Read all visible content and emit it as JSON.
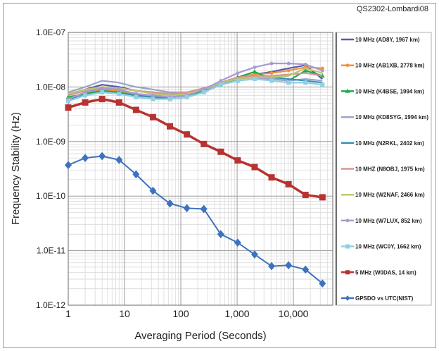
{
  "corner_label": "QS2302-Lombardi08",
  "chart_data": {
    "type": "line",
    "xscale": "log",
    "yscale": "log",
    "xlabel": "Averaging Period (Seconds)",
    "ylabel": "Frequency Stability (Hz)",
    "xlim": [
      1,
      50000
    ],
    "ylim": [
      1e-12,
      1e-07
    ],
    "x_ticks": [
      1,
      10,
      100,
      1000,
      10000
    ],
    "x_tick_labels": [
      "1",
      "10",
      "100",
      "1,000",
      "10,000"
    ],
    "y_ticks": [
      1e-07,
      1e-08,
      1e-09,
      1e-10,
      1e-11,
      1e-12
    ],
    "y_tick_labels": [
      "1.0E-07",
      "1.0E-08",
      "1.0E-09",
      "1.0E-10",
      "1.0E-11",
      "1.0E-12"
    ],
    "grid": true,
    "legend_position": "right",
    "x": [
      1,
      2,
      4,
      8,
      16,
      32,
      64,
      128,
      256,
      512,
      1024,
      2048,
      4096,
      8192,
      16384,
      32768
    ],
    "series": [
      {
        "name": "10 MHz (AD8Y, 1967 km)",
        "color": "#5a5aa8",
        "marker": "none",
        "values": [
          7e-09,
          9e-09,
          1.1e-08,
          1e-08,
          8.5e-09,
          8e-09,
          7.5e-09,
          7.5e-09,
          9e-09,
          1.2e-08,
          1.5e-08,
          1.7e-08,
          1.9e-08,
          2.2e-08,
          2.5e-08,
          1.4e-08
        ]
      },
      {
        "name": "10 MHz (AB1XB, 2778 km)",
        "color": "#f0923a",
        "marker": "circle",
        "values": [
          6e-09,
          8e-09,
          9e-09,
          8.5e-09,
          7.5e-09,
          7e-09,
          6.5e-09,
          7e-09,
          8.5e-09,
          1.2e-08,
          1.5e-08,
          1.7e-08,
          1.8e-08,
          2e-08,
          2.3e-08,
          2.2e-08
        ]
      },
      {
        "name": "10 MHz (K4BSE, 1994 km)",
        "color": "#21a84a",
        "marker": "triangle",
        "values": [
          6.5e-09,
          7.5e-09,
          8.5e-09,
          8e-09,
          7e-09,
          6.5e-09,
          6.5e-09,
          7e-09,
          8.5e-09,
          1.2e-08,
          1.5e-08,
          1.9e-08,
          1.4e-08,
          1.3e-08,
          2e-08,
          1.6e-08
        ]
      },
      {
        "name": "10 MHz (KD8SYG, 1994 km)",
        "color": "#9aa4cc",
        "marker": "none",
        "values": [
          8e-09,
          1e-08,
          1.3e-08,
          1.2e-08,
          1e-08,
          9e-09,
          8e-09,
          8e-09,
          9e-09,
          1.1e-08,
          1.3e-08,
          1.4e-08,
          1.4e-08,
          1.3e-08,
          1.4e-08,
          1.3e-08
        ]
      },
      {
        "name": "10 MHz (N2RKL, 2402 km)",
        "color": "#3e8fb6",
        "marker": "none",
        "values": [
          6e-09,
          7e-09,
          8e-09,
          7.5e-09,
          7e-09,
          6.5e-09,
          6e-09,
          6.5e-09,
          8e-09,
          1.1e-08,
          1.4e-08,
          1.5e-08,
          1.5e-08,
          1.4e-08,
          1.3e-08,
          1.2e-08
        ]
      },
      {
        "name": "10 MHZ (N8OBJ, 1975 km)",
        "color": "#d99494",
        "marker": "none",
        "values": [
          7e-09,
          8.5e-09,
          1e-08,
          9.5e-09,
          8.5e-09,
          8e-09,
          7.5e-09,
          8e-09,
          9.5e-09,
          1.2e-08,
          1.5e-08,
          1.6e-08,
          1.6e-08,
          1.7e-08,
          1.8e-08,
          1.6e-08
        ]
      },
      {
        "name": "10 MHz (W2NAF, 2466 km)",
        "color": "#b9c870",
        "marker": "none",
        "values": [
          7.5e-09,
          9e-09,
          1e-08,
          9.5e-09,
          8.5e-09,
          7.5e-09,
          7e-09,
          7.5e-09,
          9e-09,
          1.2e-08,
          1.4e-08,
          1.5e-08,
          1.5e-08,
          1.6e-08,
          2.2e-08,
          1.8e-08
        ]
      },
      {
        "name": "10 MHz (W7LUX, 852 km)",
        "color": "#a79ad4",
        "marker": "circle",
        "values": [
          6e-09,
          8e-09,
          9.5e-09,
          9e-09,
          7.5e-09,
          7e-09,
          6.5e-09,
          7e-09,
          9e-09,
          1.3e-08,
          1.8e-08,
          2.3e-08,
          2.7e-08,
          2.7e-08,
          2.6e-08,
          2e-08
        ]
      },
      {
        "name": "10 MHz (WC0Y, 1662 km)",
        "color": "#8fd0e4",
        "marker": "square",
        "values": [
          5.5e-09,
          7e-09,
          8e-09,
          7.5e-09,
          6.5e-09,
          6e-09,
          6e-09,
          6.5e-09,
          8e-09,
          1.1e-08,
          1.3e-08,
          1.4e-08,
          1.3e-08,
          1.2e-08,
          1.2e-08,
          1.1e-08
        ]
      },
      {
        "name": "5 MHz (W0DAS, 14 km)",
        "color": "#b83232",
        "marker": "square",
        "values": [
          4.2e-09,
          5.2e-09,
          6e-09,
          5.2e-09,
          3.8e-09,
          2.8e-09,
          1.9e-09,
          1.35e-09,
          9e-10,
          6.5e-10,
          4.5e-10,
          3.4e-10,
          2.2e-10,
          1.65e-10,
          1.05e-10,
          9.5e-11
        ]
      },
      {
        "name": "GPSDO vs UTC(NIST)",
        "color": "#3d72c0",
        "marker": "diamond",
        "values": [
          3.7e-10,
          5e-10,
          5.4e-10,
          4.6e-10,
          2.5e-10,
          1.25e-10,
          7.3e-11,
          6e-11,
          5.8e-11,
          2e-11,
          1.4e-11,
          8.5e-12,
          5.2e-12,
          5.4e-12,
          4.5e-12,
          2.5e-12
        ]
      }
    ]
  }
}
